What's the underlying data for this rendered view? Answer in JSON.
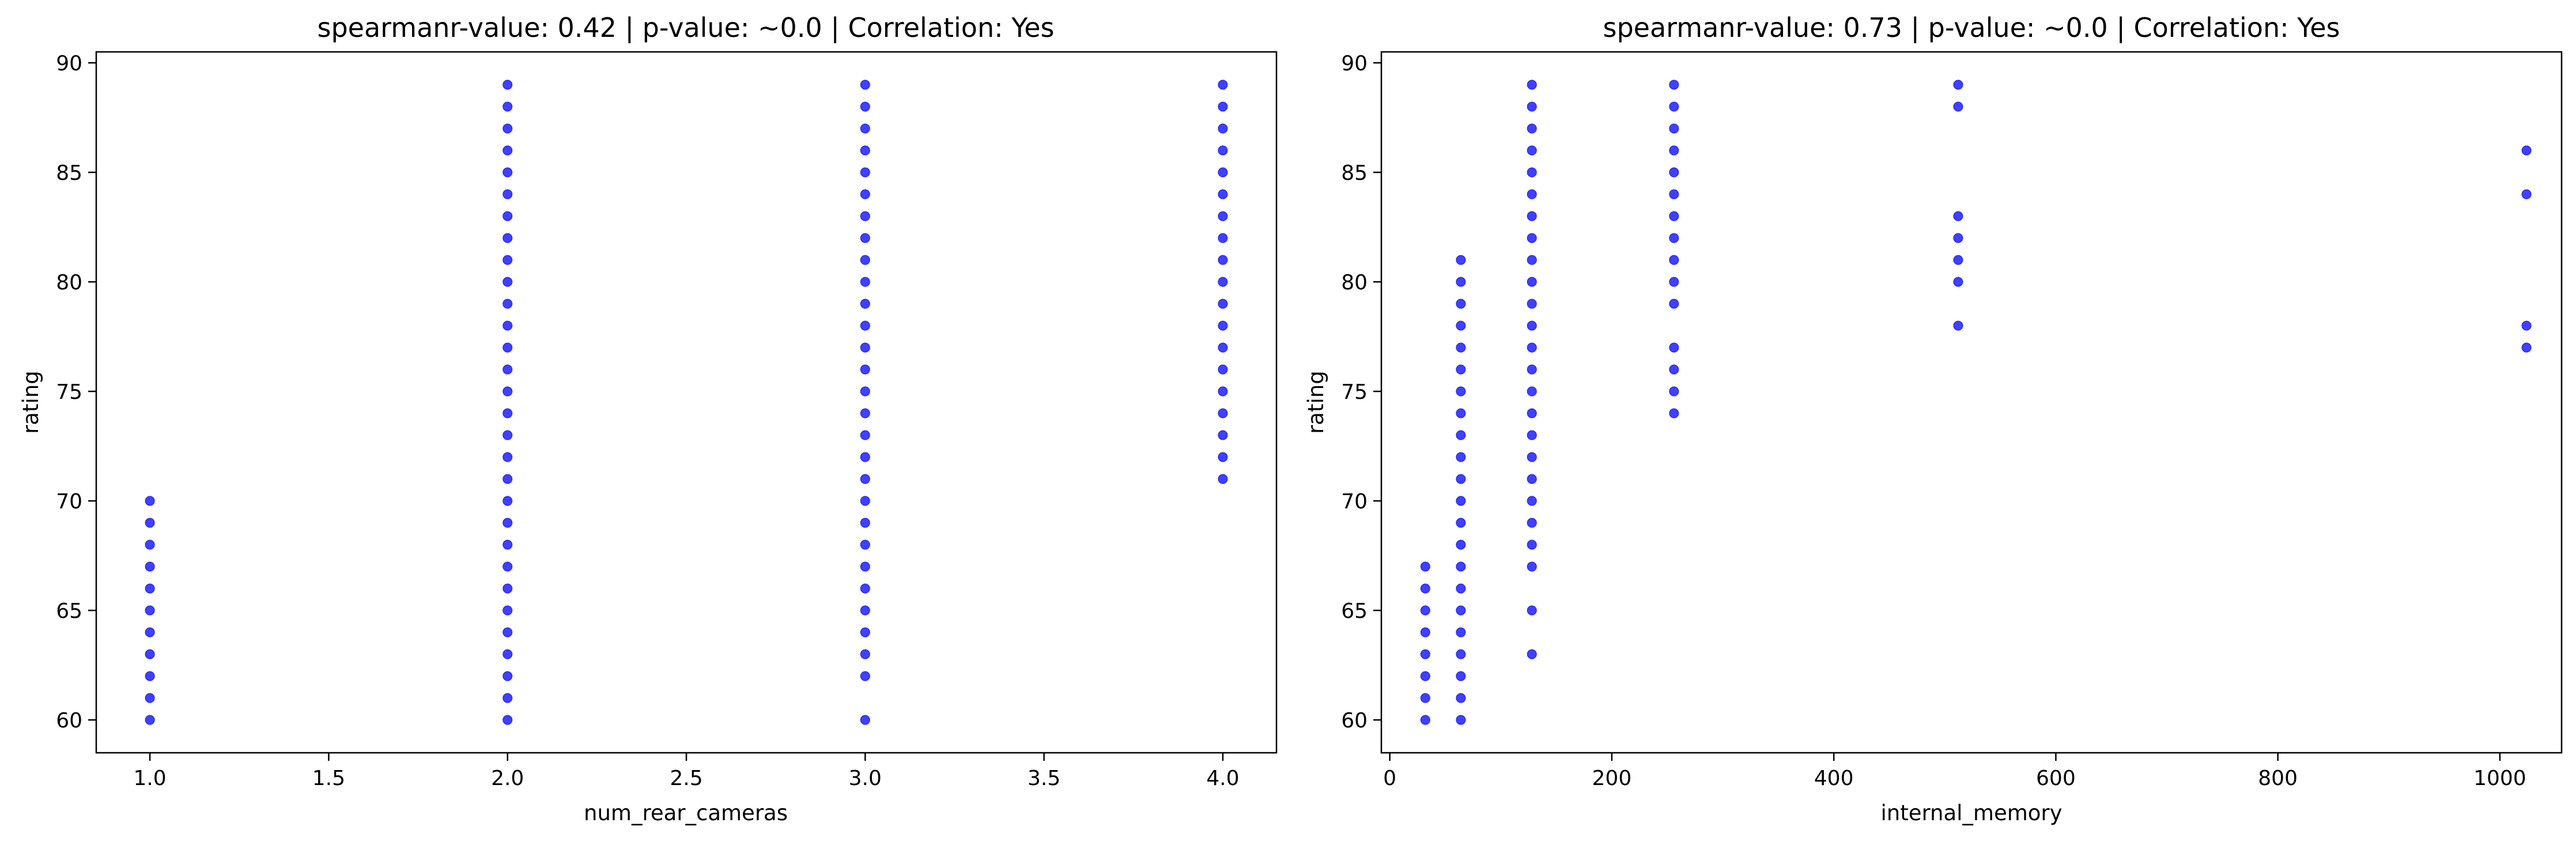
{
  "chart_data": [
    {
      "type": "scatter",
      "title": "spearmanr-value: 0.42 | p-value: ~0.0 | Correlation: Yes",
      "xlabel": "num_rear_cameras",
      "ylabel": "rating",
      "xlim": [
        0.85,
        4.15
      ],
      "ylim": [
        58.5,
        90.5
      ],
      "xticks": [
        "1.0",
        "1.5",
        "2.0",
        "2.5",
        "3.0",
        "3.5",
        "4.0"
      ],
      "yticks": [
        "60",
        "65",
        "70",
        "75",
        "80",
        "85",
        "90"
      ],
      "marker_color": "#0000ff",
      "grid": false,
      "series": [
        {
          "x": 1,
          "y": [
            60,
            61,
            62,
            63,
            64,
            65,
            66,
            67,
            68,
            69,
            70
          ]
        },
        {
          "x": 2,
          "y": [
            60,
            61,
            62,
            63,
            64,
            65,
            66,
            67,
            68,
            69,
            70,
            71,
            72,
            73,
            74,
            75,
            76,
            77,
            78,
            79,
            80,
            81,
            82,
            83,
            84,
            85,
            86,
            87,
            88,
            89
          ]
        },
        {
          "x": 3,
          "y": [
            60,
            62,
            63,
            64,
            65,
            66,
            67,
            68,
            69,
            70,
            71,
            72,
            73,
            74,
            75,
            76,
            77,
            78,
            79,
            80,
            81,
            82,
            83,
            84,
            85,
            86,
            87,
            88,
            89
          ]
        },
        {
          "x": 4,
          "y": [
            71,
            72,
            73,
            74,
            75,
            76,
            77,
            78,
            79,
            80,
            81,
            82,
            83,
            84,
            85,
            86,
            87,
            88,
            89
          ]
        }
      ]
    },
    {
      "type": "scatter",
      "title": "spearmanr-value: 0.73 | p-value: ~0.0 | Correlation: Yes",
      "xlabel": "internal_memory",
      "ylabel": "rating",
      "xlim": [
        -7.6,
        1055.6
      ],
      "ylim": [
        58.5,
        90.5
      ],
      "xticks": [
        "0",
        "200",
        "400",
        "600",
        "800",
        "1000"
      ],
      "yticks": [
        "60",
        "65",
        "70",
        "75",
        "80",
        "85",
        "90"
      ],
      "marker_color": "#0000ff",
      "grid": false,
      "series": [
        {
          "x": 32,
          "y": [
            60,
            61,
            62,
            63,
            64,
            65,
            66,
            67
          ]
        },
        {
          "x": 64,
          "y": [
            60,
            61,
            62,
            63,
            64,
            65,
            66,
            67,
            68,
            69,
            70,
            71,
            72,
            73,
            74,
            75,
            76,
            77,
            78,
            79,
            80,
            81
          ]
        },
        {
          "x": 128,
          "y": [
            63,
            65,
            67,
            68,
            69,
            70,
            71,
            72,
            73,
            74,
            75,
            76,
            77,
            78,
            79,
            80,
            81,
            82,
            83,
            84,
            85,
            86,
            87,
            88,
            89
          ]
        },
        {
          "x": 256,
          "y": [
            74,
            75,
            76,
            77,
            79,
            80,
            81,
            82,
            83,
            84,
            85,
            86,
            87,
            88,
            89
          ]
        },
        {
          "x": 512,
          "y": [
            78,
            80,
            81,
            82,
            83,
            88,
            89
          ]
        },
        {
          "x": 1024,
          "y": [
            77,
            78,
            84,
            86
          ]
        }
      ]
    }
  ]
}
